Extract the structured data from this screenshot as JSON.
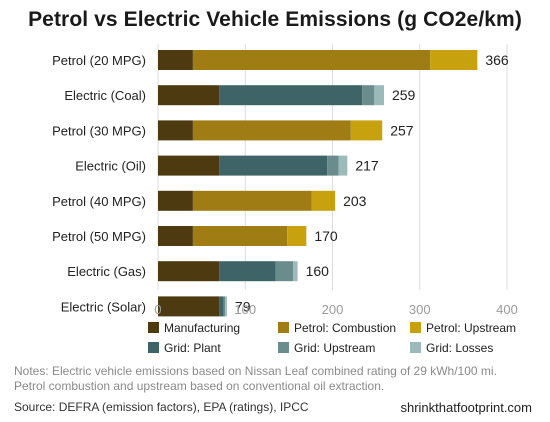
{
  "title": "Petrol vs Electric Vehicle Emissions (g CO2e/km)",
  "chart_data": {
    "type": "bar",
    "orientation": "horizontal",
    "stacked": true,
    "categories": [
      "Petrol (20 MPG)",
      "Electric (Coal)",
      "Petrol (30 MPG)",
      "Electric (Oil)",
      "Petrol (40 MPG)",
      "Petrol (50 MPG)",
      "Electric (Gas)",
      "Electric (Solar)"
    ],
    "totals": [
      366,
      259,
      257,
      217,
      203,
      170,
      160,
      79
    ],
    "series": [
      {
        "name": "Manufacturing",
        "color": "#4d3a10",
        "values": [
          40,
          70,
          40,
          70,
          40,
          40,
          70,
          70
        ]
      },
      {
        "name": "Petrol: Combustion",
        "color": "#a07d14",
        "values": [
          272,
          0,
          181,
          0,
          136,
          108,
          0,
          0
        ]
      },
      {
        "name": "Petrol: Upstream",
        "color": "#c7a10e",
        "values": [
          54,
          0,
          36,
          0,
          27,
          22,
          0,
          0
        ]
      },
      {
        "name": "Grid: Plant",
        "color": "#3f6467",
        "values": [
          0,
          164,
          0,
          124,
          0,
          0,
          65,
          5
        ]
      },
      {
        "name": "Grid: Upstream",
        "color": "#6a8c8c",
        "values": [
          0,
          14,
          0,
          13,
          0,
          0,
          20,
          2
        ]
      },
      {
        "name": "Grid: Losses",
        "color": "#9dbaba",
        "values": [
          0,
          11,
          0,
          10,
          0,
          0,
          5,
          2
        ]
      }
    ],
    "xticks": [
      0,
      100,
      200,
      300,
      400
    ],
    "xlim": [
      0,
      400
    ],
    "grid": true,
    "legend_position": "bottom"
  },
  "notes": "Notes: Electric vehicle emissions based on Nissan Leaf combined rating of 29 kWh/100 mi.  Petrol combustion and upstream based on conventional oil extraction.",
  "source": "Source:  DEFRA (emission factors), EPA (ratings), IPCC",
  "website": "shrinkthatfootprint.com"
}
